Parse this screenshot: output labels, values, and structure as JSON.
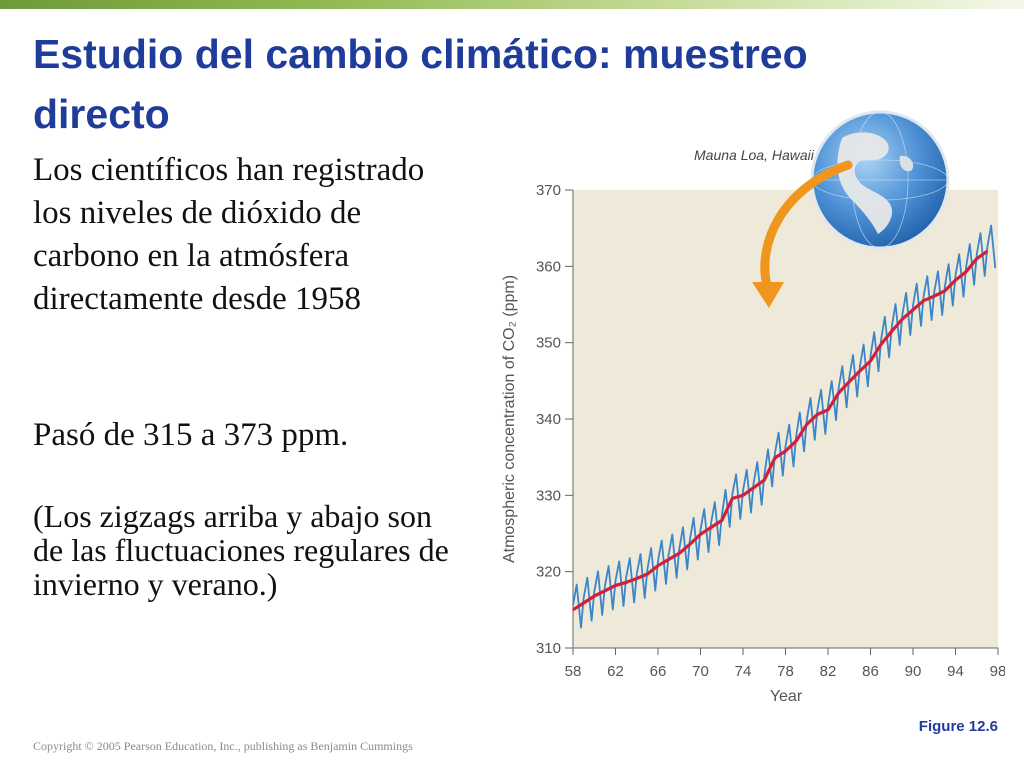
{
  "slide": {
    "title": "Estudio del cambio climático: muestreo directo",
    "paragraph1": "Los científicos han registrado los niveles de dióxido de carbono en la atmósfera directamente desde 1958",
    "paragraph2": "Pasó de 315 a 373 ppm.",
    "paragraph3": "(Los zigzags arriba y abajo son de las fluctuaciones regulares de invierno y verano.)",
    "copyright": "Copyright © 2005 Pearson Education, Inc., publishing as Benjamin Cummings",
    "figure_label": "Figure 12.6"
  },
  "colors": {
    "title": "#1f3c9a",
    "accent_bar": "#8fb84f",
    "plot_background": "#efe9da",
    "monthly_line": "#3a86c8",
    "trend_line": "#d1203a",
    "arrow": "#f0961e",
    "globe_ocean": "#4f93d6",
    "globe_land": "#e8e8e8"
  },
  "chart_data": {
    "type": "line",
    "title": "",
    "xlabel": "Year",
    "ylabel": "Atmospheric concentration of CO₂ (ppm)",
    "callout": "Mauna Loa, Hawaii",
    "callout_icon": "globe-icon",
    "xlim": [
      58,
      98
    ],
    "ylim": [
      310,
      370
    ],
    "x_ticks": [
      "58",
      "62",
      "66",
      "70",
      "74",
      "78",
      "82",
      "86",
      "90",
      "94",
      "98"
    ],
    "y_ticks": [
      "310",
      "320",
      "330",
      "340",
      "350",
      "360",
      "370"
    ],
    "grid": false,
    "seasonal_amplitude_ppm": 3,
    "series": [
      {
        "role": "annual-average",
        "x": [
          58,
          59,
          60,
          61,
          62,
          63,
          64,
          65,
          66,
          67,
          68,
          69,
          70,
          71,
          72,
          73,
          74,
          75,
          76,
          77,
          78,
          79,
          80,
          81,
          82,
          83,
          84,
          85,
          86,
          87,
          88,
          89,
          90,
          91,
          92,
          93,
          94,
          95,
          96,
          97
        ],
        "values": [
          315.0,
          315.9,
          316.8,
          317.5,
          318.2,
          318.6,
          319.1,
          319.7,
          320.8,
          321.6,
          322.4,
          323.6,
          324.9,
          325.8,
          326.7,
          329.6,
          330.0,
          331.0,
          332.0,
          334.9,
          335.8,
          337.1,
          339.3,
          340.6,
          341.2,
          343.4,
          344.9,
          346.3,
          347.6,
          349.8,
          351.5,
          353.1,
          354.3,
          355.5,
          356.1,
          356.8,
          358.2,
          359.3,
          361.0,
          362.0
        ]
      }
    ]
  }
}
